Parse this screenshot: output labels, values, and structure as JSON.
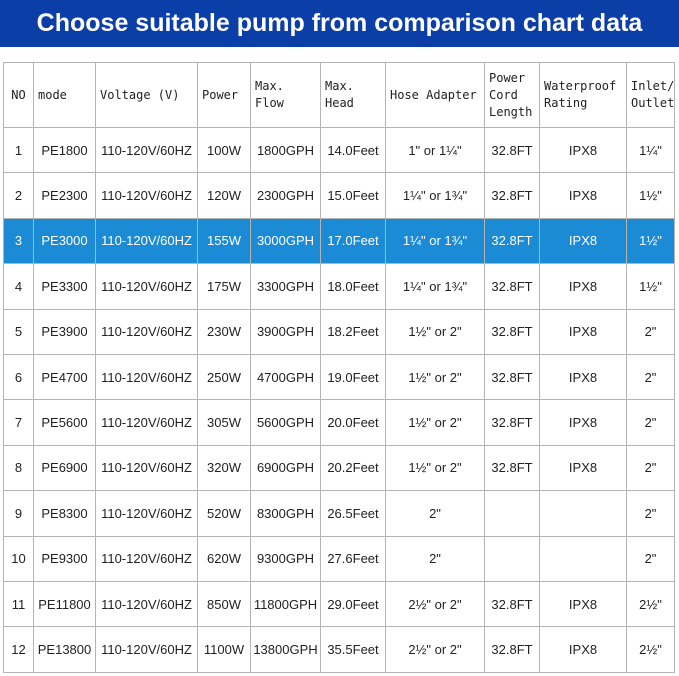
{
  "header": {
    "title": "Choose suitable pump from comparison chart data"
  },
  "table": {
    "columns": [
      [
        "NO"
      ],
      [
        "mode"
      ],
      [
        "Voltage (V)"
      ],
      [
        "Power"
      ],
      [
        "Max.",
        "Flow"
      ],
      [
        "Max.",
        "Head"
      ],
      [
        "Hose Adapter"
      ],
      [
        "Power",
        "Cord",
        "Length"
      ],
      [
        "Waterproof",
        "Rating"
      ],
      [
        "Inlet/",
        "Outlet"
      ]
    ],
    "rows": [
      [
        "1",
        "PE1800",
        "110-120V/60HZ",
        "100W",
        "1800GPH",
        "14.0Feet",
        "1\" or 1¼\"",
        "32.8FT",
        "IPX8",
        "1¼\""
      ],
      [
        "2",
        "PE2300",
        "110-120V/60HZ",
        "120W",
        "2300GPH",
        "15.0Feet",
        "1¼\" or 1¾\"",
        "32.8FT",
        "IPX8",
        "1½\""
      ],
      [
        "3",
        "PE3000",
        "110-120V/60HZ",
        "155W",
        "3000GPH",
        "17.0Feet",
        "1¼\" or 1¾\"",
        "32.8FT",
        "IPX8",
        "1½\""
      ],
      [
        "4",
        "PE3300",
        "110-120V/60HZ",
        "175W",
        "3300GPH",
        "18.0Feet",
        "1¼\" or 1¾\"",
        "32.8FT",
        "IPX8",
        "1½\""
      ],
      [
        "5",
        "PE3900",
        "110-120V/60HZ",
        "230W",
        "3900GPH",
        "18.2Feet",
        "1½\" or 2\"",
        "32.8FT",
        "IPX8",
        "2\""
      ],
      [
        "6",
        "PE4700",
        "110-120V/60HZ",
        "250W",
        "4700GPH",
        "19.0Feet",
        "1½\" or 2\"",
        "32.8FT",
        "IPX8",
        "2\""
      ],
      [
        "7",
        "PE5600",
        "110-120V/60HZ",
        "305W",
        "5600GPH",
        "20.0Feet",
        "1½\" or 2\"",
        "32.8FT",
        "IPX8",
        "2\""
      ],
      [
        "8",
        "PE6900",
        "110-120V/60HZ",
        "320W",
        "6900GPH",
        "20.2Feet",
        "1½\" or 2\"",
        "32.8FT",
        "IPX8",
        "2\""
      ],
      [
        "9",
        "PE8300",
        "110-120V/60HZ",
        "520W",
        "8300GPH",
        "26.5Feet",
        "2\"",
        "",
        "",
        "2\""
      ],
      [
        "10",
        "PE9300",
        "110-120V/60HZ",
        "620W",
        "9300GPH",
        "27.6Feet",
        "2\"",
        "",
        "",
        "2\""
      ],
      [
        "11",
        "PE11800",
        "110-120V/60HZ",
        "850W",
        "11800GPH",
        "29.0Feet",
        "2½\" or 2\"",
        "32.8FT",
        "IPX8",
        "2½\""
      ],
      [
        "12",
        "PE13800",
        "110-120V/60HZ",
        "1100W",
        "13800GPH",
        "35.5Feet",
        "2½\" or 2\"",
        "32.8FT",
        "IPX8",
        "2½\""
      ]
    ]
  }
}
